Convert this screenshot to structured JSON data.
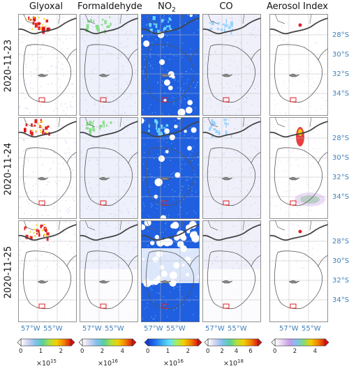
{
  "columns": [
    "Glyoxal",
    "Formaldehyde",
    "NO",
    "CO",
    "Aerosol Index"
  ],
  "no2_subscript": "2",
  "rows": [
    "2020-11-23",
    "2020-11-24",
    "2020-11-25"
  ],
  "lat_labels": [
    "28°S",
    "30°S",
    "32°S",
    "34°S"
  ],
  "lon_labels": [
    "57°W",
    "55°W"
  ],
  "colorbars": [
    {
      "ticks": [
        "0",
        "1",
        "2"
      ],
      "exponent_base": "×10",
      "exponent": "15"
    },
    {
      "ticks": [
        "0",
        "2",
        "4"
      ],
      "exponent_base": "×10",
      "exponent": "16"
    },
    {
      "ticks": [
        "0",
        "1",
        "2"
      ],
      "exponent_base": "×10",
      "exponent": "16"
    },
    {
      "ticks": [
        "0",
        "2",
        "4",
        "6"
      ],
      "exponent_base": "×10",
      "exponent": "18"
    },
    {
      "ticks": [
        "0",
        "2",
        "4"
      ],
      "exponent_base": "",
      "exponent": ""
    }
  ],
  "colors": {
    "label_blue": "#3f7fb8",
    "border": "#555555",
    "marker": "#e02020",
    "no2_background": "#1f5fe0"
  }
}
